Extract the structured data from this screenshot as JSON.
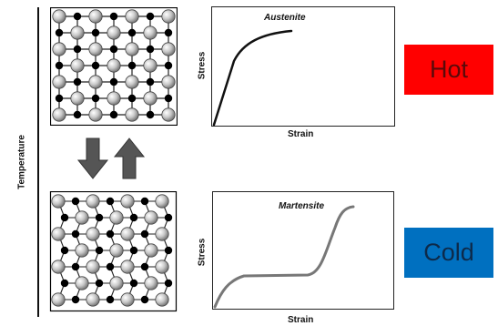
{
  "diagram": {
    "temperature_axis_label": "Temperature",
    "hot_label": "Hot",
    "cold_label": "Cold",
    "colors": {
      "hot": "#ff0000",
      "cold": "#0070c0",
      "atom_large": "#c8c8c8",
      "atom_small": "#000000"
    },
    "arrows": [
      "down-arrow",
      "up-arrow"
    ]
  },
  "austenite_chart": {
    "title": "Austenite",
    "xlabel": "Strain",
    "ylabel": "Stress"
  },
  "martensite_chart": {
    "title": "Martensite",
    "xlabel": "Strain",
    "ylabel": "Stress"
  }
}
